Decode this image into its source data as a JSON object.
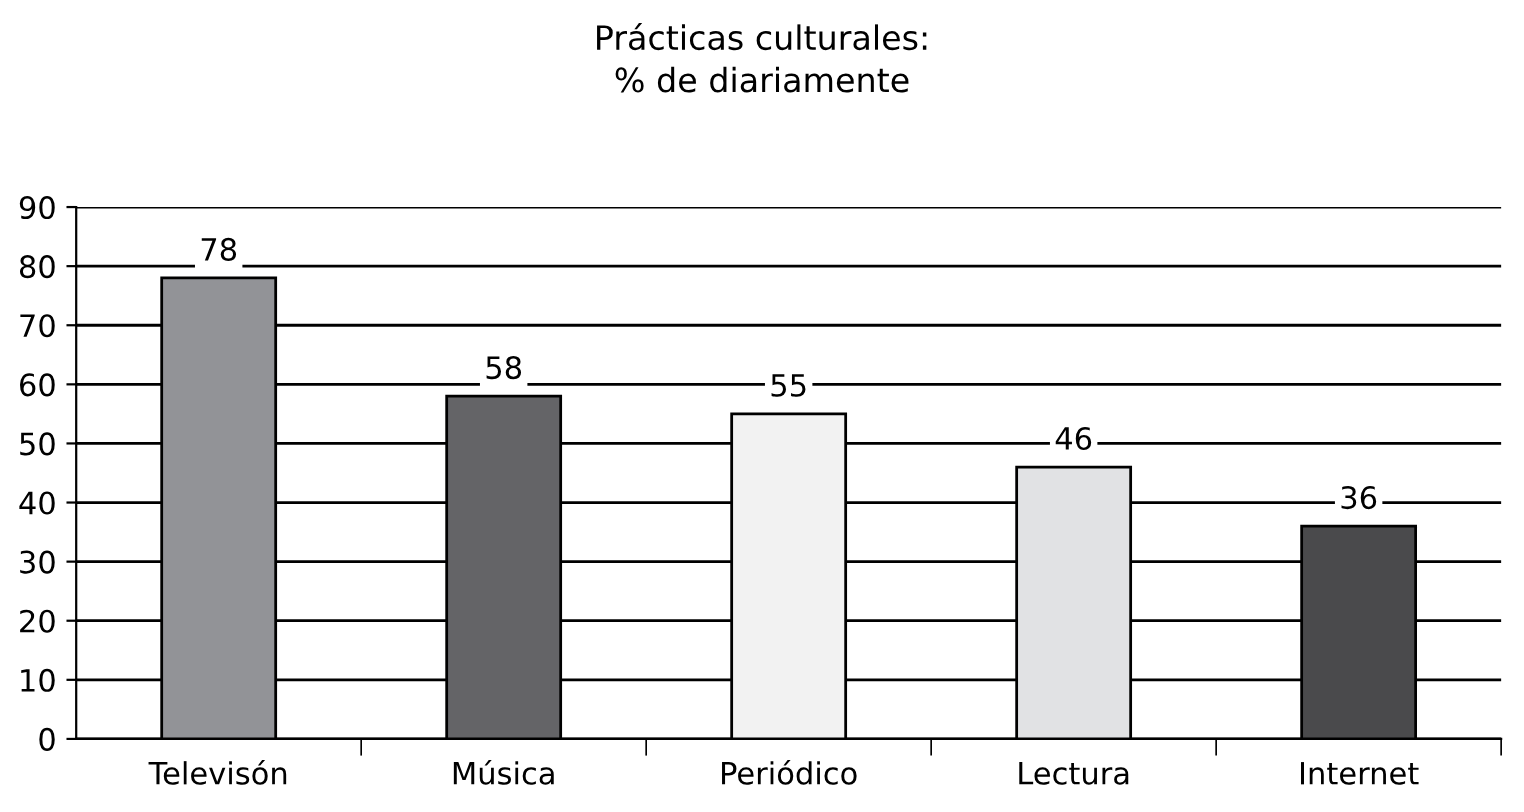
{
  "chart_data": {
    "type": "bar",
    "title": "Prácticas culturales:\n% de diariamente",
    "categories": [
      "Televisón",
      "Música",
      "Periódico",
      "Lectura",
      "Internet"
    ],
    "values": [
      78,
      58,
      55,
      46,
      36
    ],
    "colors": [
      "#929397",
      "#646467",
      "#f2f2f2",
      "#e1e2e4",
      "#4a4a4c"
    ],
    "ylim": [
      0,
      90
    ],
    "yticks": [
      0,
      10,
      20,
      30,
      40,
      50,
      60,
      70,
      80,
      90
    ],
    "grid": "y",
    "data_labels": true,
    "legend": false
  }
}
